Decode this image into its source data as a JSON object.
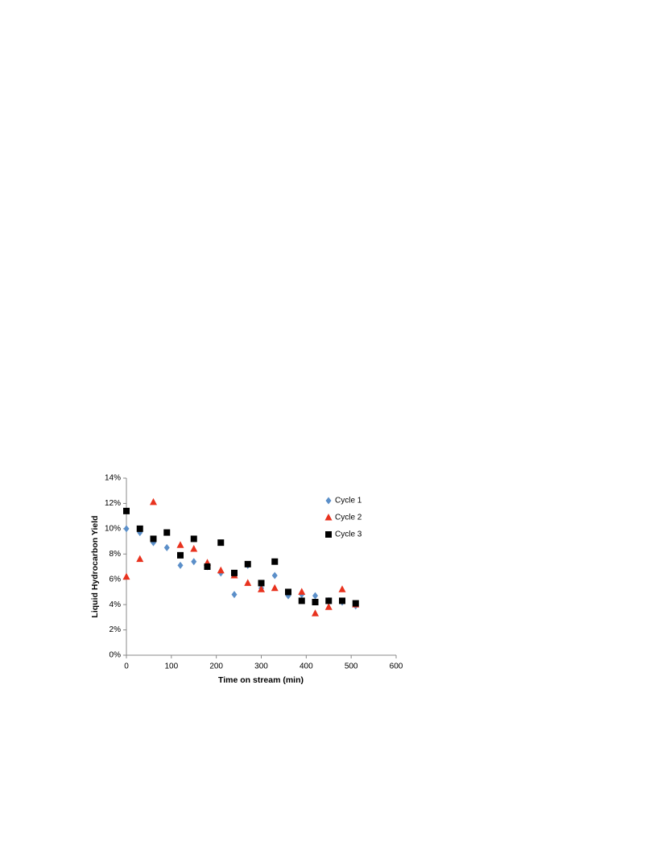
{
  "chart_data": {
    "type": "scatter",
    "xlabel": "Time on stream (min)",
    "ylabel": "Liquid Hydrocarbon Yield",
    "x": [
      0,
      30,
      60,
      90,
      120,
      150,
      180,
      210,
      240,
      270,
      300,
      330,
      360,
      390,
      420,
      450,
      480,
      510
    ],
    "series": [
      {
        "name": "Cycle 1",
        "color": "#5b8fc9",
        "marker": "diamond",
        "values": [
          10.0,
          9.7,
          8.9,
          8.5,
          7.1,
          7.4,
          7.0,
          6.5,
          4.8,
          7.1,
          5.3,
          6.3,
          4.7,
          4.8,
          4.7,
          4.3,
          4.2,
          3.9
        ]
      },
      {
        "name": "Cycle 2",
        "color": "#e8321e",
        "marker": "triangle",
        "values": [
          6.2,
          7.6,
          12.1,
          null,
          8.7,
          8.4,
          7.3,
          6.7,
          6.3,
          5.7,
          5.2,
          5.3,
          null,
          5.0,
          3.3,
          3.8,
          5.2,
          4.0
        ]
      },
      {
        "name": "Cycle 3",
        "color": "#000000",
        "marker": "square",
        "values": [
          11.4,
          10.0,
          9.2,
          9.7,
          7.9,
          9.2,
          7.0,
          8.9,
          6.5,
          7.2,
          5.7,
          7.4,
          5.0,
          4.3,
          4.2,
          4.3,
          4.3,
          4.1
        ]
      }
    ],
    "xlim": [
      0,
      600
    ],
    "xticks": [
      0,
      100,
      200,
      300,
      400,
      500,
      600
    ],
    "ylim": [
      0,
      14
    ],
    "yticks": [
      {
        "value": 0,
        "label": "0%"
      },
      {
        "value": 2,
        "label": "2%"
      },
      {
        "value": 4,
        "label": "4%"
      },
      {
        "value": 6,
        "label": "6%"
      },
      {
        "value": 8,
        "label": "8%"
      },
      {
        "value": 10,
        "label": "10%"
      },
      {
        "value": 12,
        "label": "12%"
      },
      {
        "value": 14,
        "label": "14%"
      }
    ],
    "grid": false,
    "legend": "upper right"
  }
}
